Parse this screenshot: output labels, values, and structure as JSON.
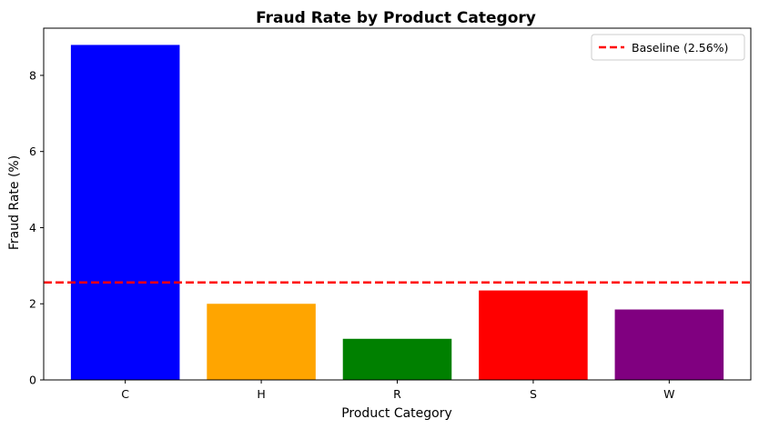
{
  "chart_data": {
    "type": "bar",
    "title": "Fraud Rate by Product Category",
    "xlabel": "Product Category",
    "ylabel": "Fraud Rate (%)",
    "categories": [
      "C",
      "H",
      "R",
      "S",
      "W"
    ],
    "values": [
      8.8,
      2.0,
      1.08,
      2.35,
      1.85
    ],
    "colors": [
      "#0000ff",
      "#ffa500",
      "#008000",
      "#ff0000",
      "#800080"
    ],
    "ylim": [
      0,
      9.24
    ],
    "yticks": [
      0,
      2,
      4,
      6,
      8
    ],
    "grid": false,
    "baseline": {
      "value": 2.56,
      "label": "Baseline (2.56%)",
      "color": "#ff0000",
      "style": "dashed"
    },
    "legend": {
      "placement": "top-right"
    }
  }
}
